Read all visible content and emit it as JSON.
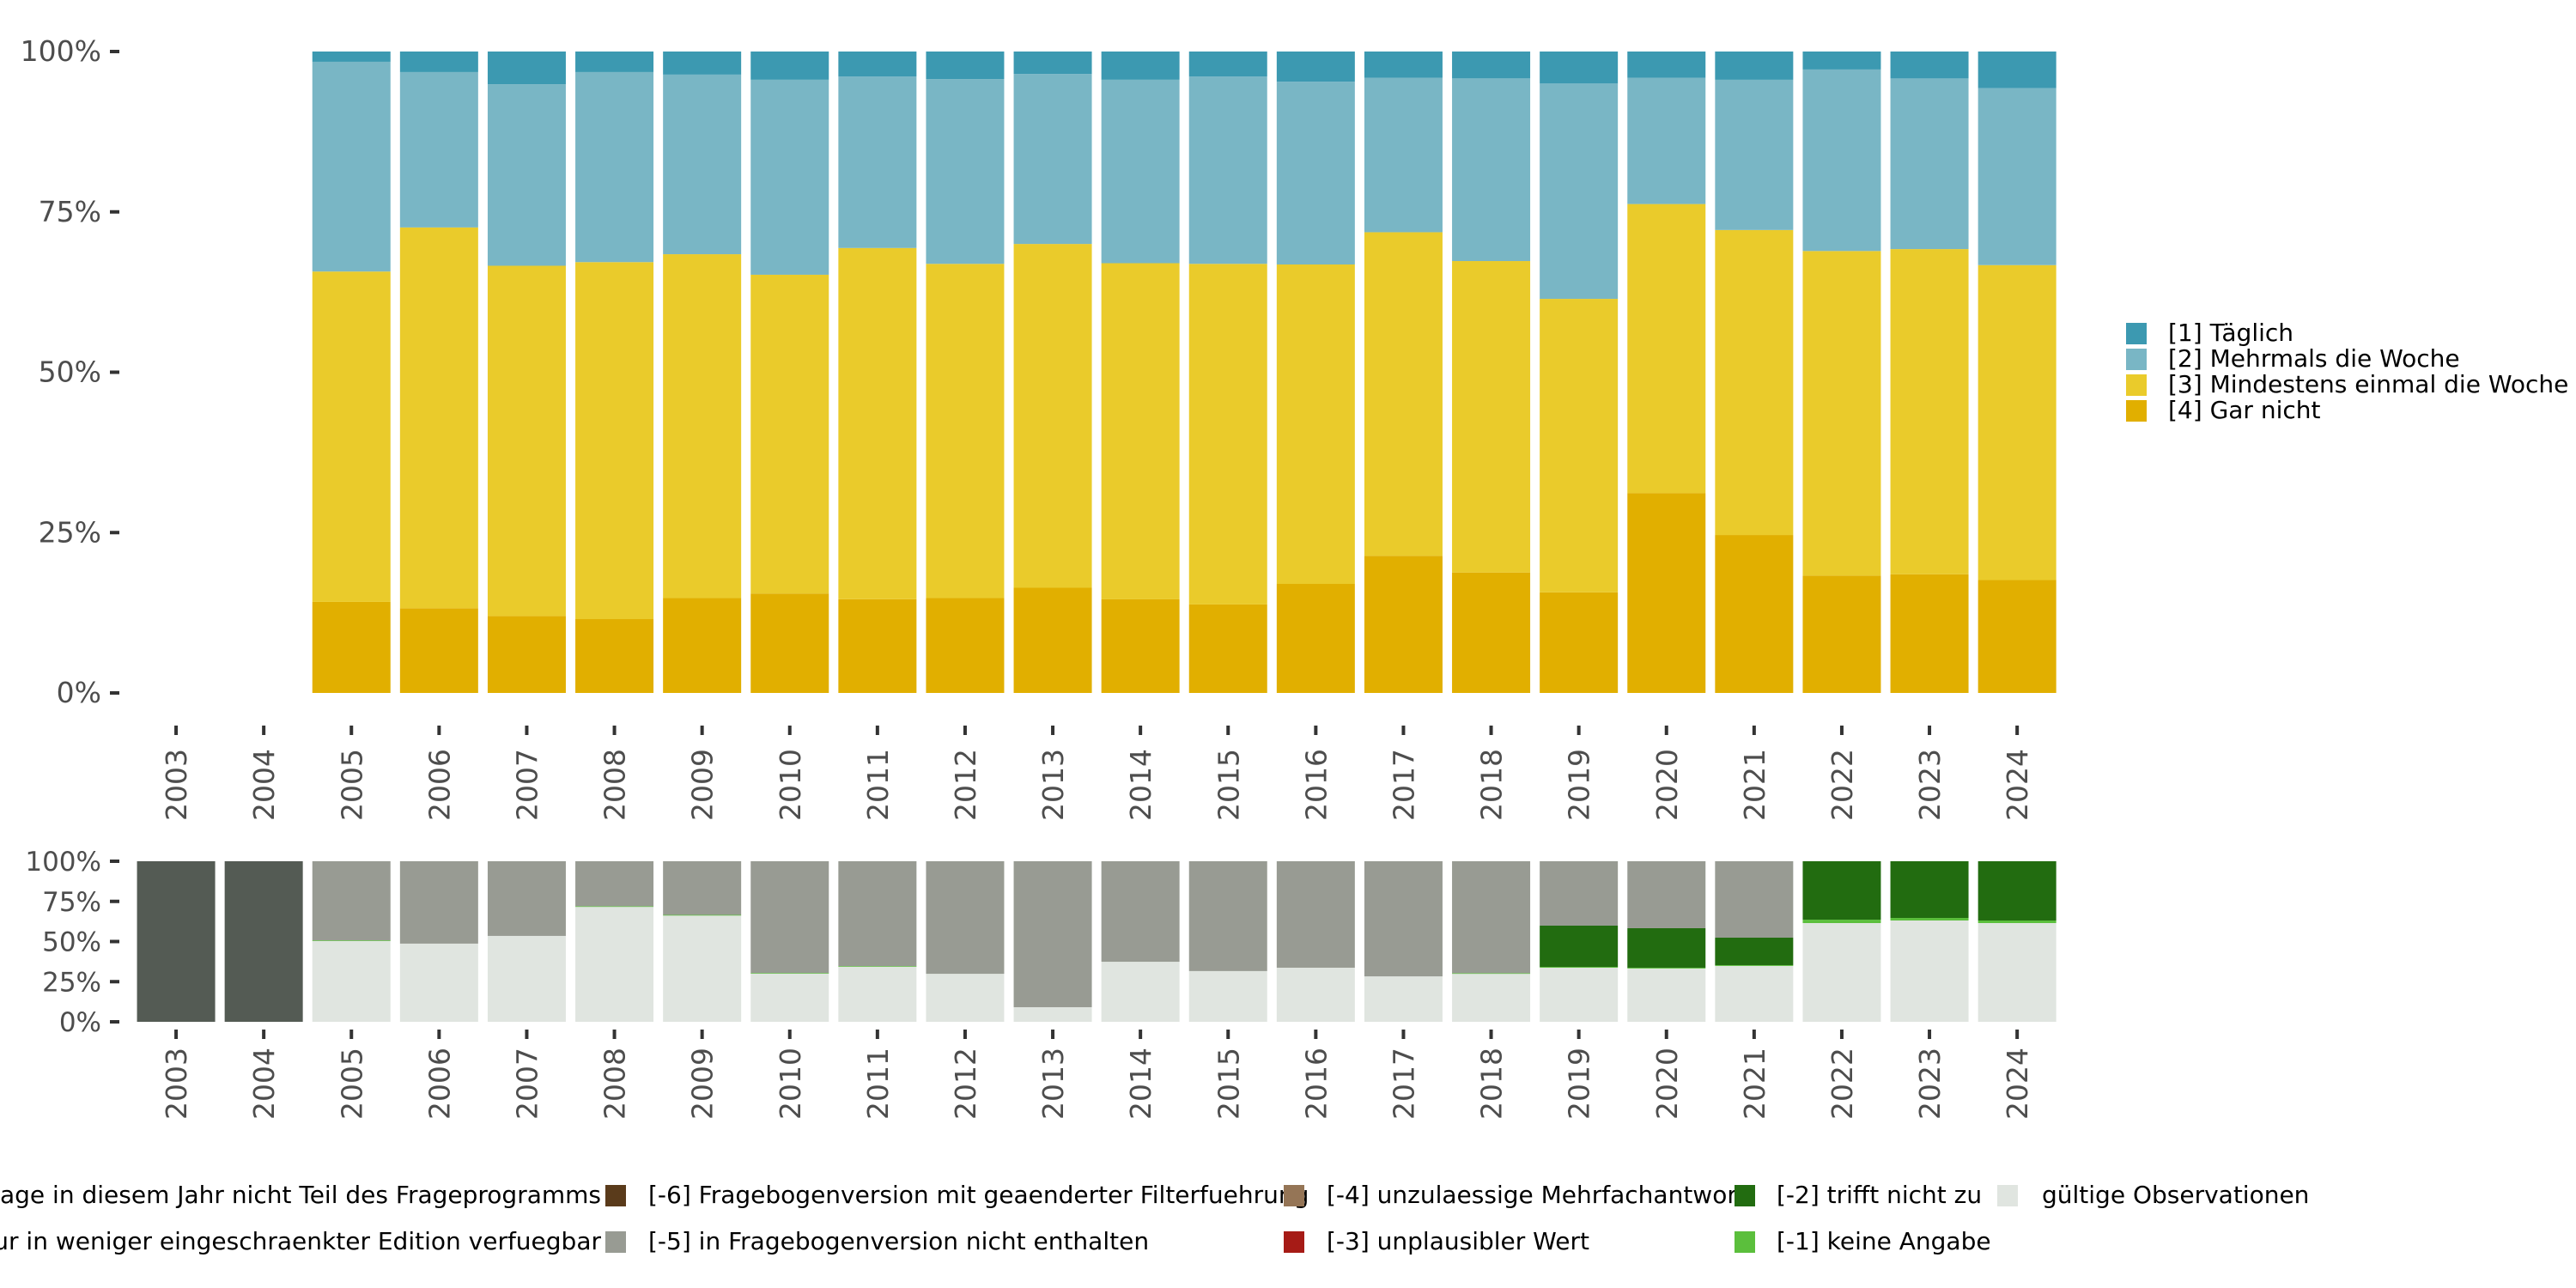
{
  "chart_data": [
    {
      "id": "response-distribution",
      "type": "bar",
      "stacked": true,
      "normalized": true,
      "title": "",
      "xlabel": "",
      "ylabel": "",
      "ylim": [
        0,
        1
      ],
      "y_ticks": [
        "0%",
        "25%",
        "50%",
        "75%",
        "100%"
      ],
      "y_tick_values": [
        0,
        0.25,
        0.5,
        0.75,
        1.0
      ],
      "categories": [
        "2003",
        "2004",
        "2005",
        "2006",
        "2007",
        "2008",
        "2009",
        "2010",
        "2011",
        "2012",
        "2013",
        "2014",
        "2015",
        "2016",
        "2017",
        "2018",
        "2019",
        "2020",
        "2021",
        "2022",
        "2023",
        "2024"
      ],
      "grid": false,
      "legend_position": "right",
      "stack_order_bottom_to_top": [
        "[4] Gar nicht",
        "[3] Mindestens einmal die Woche",
        "[2] Mehrmals die Woche",
        "[1] Täglich"
      ],
      "series": [
        {
          "name": "[1] Täglich",
          "color": "#3C99B1",
          "values": [
            null,
            null,
            1.6,
            3.2,
            5.1,
            3.2,
            3.6,
            4.4,
            3.9,
            4.3,
            3.5,
            4.4,
            3.9,
            4.7,
            4.1,
            4.2,
            5.0,
            4.1,
            4.4,
            2.8,
            4.2,
            5.7
          ]
        },
        {
          "name": "[2] Mehrmals die Woche",
          "color": "#79B6C5",
          "values": [
            null,
            null,
            32.7,
            24.2,
            28.3,
            29.6,
            28.0,
            30.4,
            26.7,
            28.8,
            26.5,
            28.6,
            29.2,
            28.5,
            24.1,
            28.5,
            33.6,
            19.7,
            23.4,
            28.3,
            26.6,
            27.6
          ]
        },
        {
          "name": "[3] Mindestens einmal die Woche",
          "color": "#EACB2B",
          "values": [
            null,
            null,
            51.5,
            59.3,
            54.6,
            55.6,
            53.6,
            49.7,
            54.7,
            52.1,
            53.6,
            52.4,
            53.1,
            49.8,
            50.5,
            48.6,
            45.8,
            45.1,
            47.5,
            50.6,
            50.7,
            49.1
          ]
        },
        {
          "name": "[4] Gar nicht",
          "color": "#E1AF00",
          "values": [
            null,
            null,
            14.2,
            13.2,
            12.0,
            11.5,
            14.8,
            15.5,
            14.6,
            14.8,
            16.4,
            14.6,
            13.8,
            17.0,
            21.4,
            18.8,
            15.7,
            31.2,
            24.6,
            18.3,
            18.5,
            17.6
          ]
        }
      ],
      "legend": [
        {
          "label": "[1] Täglich",
          "color": "#3C99B1"
        },
        {
          "label": "[2] Mehrmals die Woche",
          "color": "#79B6C5"
        },
        {
          "label": "[3] Mindestens einmal die Woche",
          "color": "#EACB2B"
        },
        {
          "label": "[4] Gar nicht",
          "color": "#E1AF00"
        }
      ]
    },
    {
      "id": "missing-codes",
      "type": "bar",
      "stacked": true,
      "normalized": true,
      "title": "",
      "xlabel": "",
      "ylabel": "",
      "ylim": [
        0,
        1
      ],
      "y_ticks": [
        "0%",
        "25%",
        "50%",
        "75%",
        "100%"
      ],
      "y_tick_values": [
        0,
        0.25,
        0.5,
        0.75,
        1.0
      ],
      "categories": [
        "2003",
        "2004",
        "2005",
        "2006",
        "2007",
        "2008",
        "2009",
        "2010",
        "2011",
        "2012",
        "2013",
        "2014",
        "2015",
        "2016",
        "2017",
        "2018",
        "2019",
        "2020",
        "2021",
        "2022",
        "2023",
        "2024"
      ],
      "grid": false,
      "legend_position": "bottom",
      "stack_order_bottom_to_top": [
        "gültige Observationen",
        "[-1] keine Angabe",
        "[-2] trifft nicht zu",
        "[-3] unplausibler Wert",
        "[-4] unzulaessige Mehrfachantwort",
        "[-5] in Fragebogenversion nicht enthalten",
        "[-6] Fragebogenversion mit geaenderter Filterfuehrung",
        "nur in weniger eingeschraenkter Edition verfuegbar",
        "Frage in diesem Jahr nicht Teil des Frageprogramms"
      ],
      "series": [
        {
          "name": "gültige Observationen",
          "color": "#E0E5E0",
          "values": [
            0,
            0,
            50.4,
            48.7,
            53.5,
            71.7,
            66.3,
            30.1,
            34.4,
            29.9,
            9.1,
            37.4,
            31.6,
            33.7,
            28.3,
            29.9,
            33.7,
            33.2,
            34.8,
            61.5,
            63.1,
            61.5
          ]
        },
        {
          "name": "[-1] keine Angabe",
          "color": "#5BBF3C",
          "values": [
            0,
            0,
            0.3,
            0,
            0,
            0.3,
            0.3,
            0.3,
            0.3,
            0,
            0,
            0,
            0,
            0,
            0,
            0.4,
            0.5,
            0.5,
            0.5,
            2.1,
            1.6,
            1.6
          ]
        },
        {
          "name": "[-2] trifft nicht zu",
          "color": "#226C10",
          "values": [
            0,
            0,
            0,
            0,
            0,
            0,
            0,
            0,
            0,
            0,
            0,
            0,
            0,
            0,
            0,
            0,
            25.7,
            24.6,
            17.1,
            36.4,
            35.3,
            36.9
          ]
        },
        {
          "name": "[-3] unplausibler Wert",
          "color": "#A61B16",
          "values": [
            0,
            0,
            0,
            0,
            0,
            0,
            0,
            0,
            0,
            0,
            0,
            0,
            0,
            0,
            0,
            0,
            0,
            0,
            0,
            0,
            0,
            0
          ]
        },
        {
          "name": "[-4] unzulaessige Mehrfachantwort",
          "color": "#957556",
          "values": [
            0,
            0,
            0,
            0,
            0,
            0,
            0,
            0,
            0,
            0,
            0,
            0,
            0,
            0,
            0,
            0,
            0,
            0,
            0,
            0,
            0,
            0
          ]
        },
        {
          "name": "[-5] in Fragebogenversion nicht enthalten",
          "color": "#989B93",
          "values": [
            0,
            0,
            49.3,
            51.3,
            46.5,
            28.0,
            33.4,
            69.6,
            65.3,
            70.1,
            90.9,
            62.6,
            68.4,
            66.3,
            71.7,
            69.7,
            40.1,
            41.7,
            47.6,
            0,
            0,
            0
          ]
        },
        {
          "name": "[-6] Fragebogenversion mit geaenderter Filterfuehrung",
          "color": "#5A3B1B",
          "values": [
            0,
            0,
            0,
            0,
            0,
            0,
            0,
            0,
            0,
            0,
            0,
            0,
            0,
            0,
            0,
            0,
            0,
            0,
            0,
            0,
            0,
            0
          ]
        },
        {
          "name": "nur in weniger eingeschraenkter Edition verfuegbar",
          "color": "#7E8079",
          "values": [
            0,
            0,
            0,
            0,
            0,
            0,
            0,
            0,
            0,
            0,
            0,
            0,
            0,
            0,
            0,
            0,
            0,
            0,
            0,
            0,
            0,
            0
          ]
        },
        {
          "name": "Frage in diesem Jahr nicht Teil des Frageprogramms",
          "color": "#545B54",
          "values": [
            100,
            100,
            0,
            0,
            0,
            0,
            0,
            0,
            0,
            0,
            0,
            0,
            0,
            0,
            0,
            0,
            0,
            0,
            0,
            0,
            0,
            0
          ]
        }
      ],
      "legend": [
        {
          "label": "Frage in diesem Jahr nicht Teil des Frageprogramms",
          "color": "#545B54"
        },
        {
          "label": "nur in weniger eingeschraenkter Edition verfuegbar",
          "color": "#7E8079"
        },
        {
          "label": "[-6] Fragebogenversion mit geaenderter Filterfuehrung",
          "color": "#5A3B1B"
        },
        {
          "label": "[-5] in Fragebogenversion nicht enthalten",
          "color": "#989B93"
        },
        {
          "label": "[-4] unzulaessige Mehrfachantwort",
          "color": "#957556"
        },
        {
          "label": "[-3] unplausibler Wert",
          "color": "#A61B16"
        },
        {
          "label": "[-2] trifft nicht zu",
          "color": "#226C10"
        },
        {
          "label": "[-1] keine Angabe",
          "color": "#5BBF3C"
        },
        {
          "label": "gültige Observationen",
          "color": "#E0E5E0"
        }
      ]
    }
  ]
}
